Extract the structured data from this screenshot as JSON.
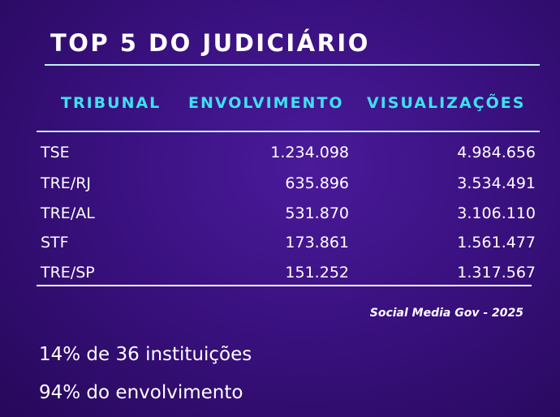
{
  "title": "TOP 5 DO JUDICIÁRIO",
  "table": {
    "header": [
      "TRIBUNAL",
      "ENVOLVIMENTO",
      "VISUALIZAÇÕES"
    ],
    "rows": [
      [
        "TSE",
        "1.234.098",
        "4.984.656"
      ],
      [
        "TRE/RJ",
        "635.896",
        "3.534.491"
      ],
      [
        "TRE/AL",
        "531.870",
        "3.106.110"
      ],
      [
        "STF",
        "173.861",
        "1.561.477"
      ],
      [
        "TRE/SP",
        "151.252",
        "1.317.567"
      ]
    ]
  },
  "source": "Social Media Gov - 2025",
  "notes": [
    "14% de 36 instituições",
    "94% do envolvimento"
  ]
}
